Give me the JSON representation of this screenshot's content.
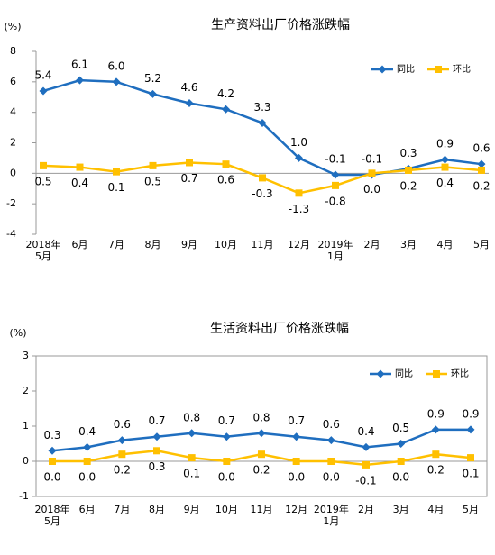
{
  "chart_data": [
    {
      "type": "line",
      "title": "生产资料出厂价格涨跌幅",
      "y_label": "(%)",
      "categories": [
        "2018年\n5月",
        "6月",
        "7月",
        "8月",
        "9月",
        "10月",
        "11月",
        "12月",
        "2019年\n1月",
        "2月",
        "3月",
        "4月",
        "5月"
      ],
      "series": [
        {
          "name": "同比",
          "color": "#1f6ebf",
          "marker": "diamond",
          "label_side": "above",
          "values": [
            5.4,
            6.1,
            6.0,
            5.2,
            4.6,
            4.2,
            3.3,
            1.0,
            -0.1,
            -0.1,
            0.3,
            0.9,
            0.6
          ],
          "value_labels": [
            "5.4",
            "6.1",
            "6.0",
            "5.2",
            "4.6",
            "4.2",
            "3.3",
            "1.0",
            "-0.1",
            "-0.1",
            "0.3",
            "0.9",
            "0.6"
          ]
        },
        {
          "name": "环比",
          "color": "#ffc000",
          "marker": "square",
          "label_side": "below",
          "values": [
            0.5,
            0.4,
            0.1,
            0.5,
            0.7,
            0.6,
            -0.3,
            -1.3,
            -0.8,
            0.0,
            0.2,
            0.4,
            0.2
          ],
          "value_labels": [
            "0.5",
            "0.4",
            "0.1",
            "0.5",
            "0.7",
            "0.6",
            "-0.3",
            "-1.3",
            "-0.8",
            "0.0",
            "0.2",
            "0.4",
            "0.2"
          ]
        }
      ],
      "ylim": [
        -4,
        8
      ],
      "yticks": [
        -4,
        -2,
        0,
        2,
        4,
        6,
        8
      ],
      "legend": "upper right",
      "frame": false
    },
    {
      "type": "line",
      "title": "生活资料出厂价格涨跌幅",
      "y_label": "(%)",
      "categories": [
        "2018年\n5月",
        "6月",
        "7月",
        "8月",
        "9月",
        "10月",
        "11月",
        "12月",
        "2019年\n1月",
        "2月",
        "3月",
        "4月",
        "5月"
      ],
      "series": [
        {
          "name": "同比",
          "color": "#1f6ebf",
          "marker": "diamond",
          "label_side": "above",
          "values": [
            0.3,
            0.4,
            0.6,
            0.7,
            0.8,
            0.7,
            0.8,
            0.7,
            0.6,
            0.4,
            0.5,
            0.9,
            0.9
          ],
          "value_labels": [
            "0.3",
            "0.4",
            "0.6",
            "0.7",
            "0.8",
            "0.7",
            "0.8",
            "0.7",
            "0.6",
            "0.4",
            "0.5",
            "0.9",
            "0.9"
          ]
        },
        {
          "name": "环比",
          "color": "#ffc000",
          "marker": "square",
          "label_side": "below",
          "values": [
            0.0,
            0.0,
            0.2,
            0.3,
            0.1,
            0.0,
            0.2,
            0.0,
            0.0,
            -0.1,
            0.0,
            0.2,
            0.1
          ],
          "value_labels": [
            "0.0",
            "0.0",
            "0.2",
            "0.3",
            "0.1",
            "0.0",
            "0.2",
            "0.0",
            "0.0",
            "-0.1",
            "0.0",
            "0.2",
            "0.1"
          ]
        }
      ],
      "ylim": [
        -1,
        3
      ],
      "yticks": [
        -1,
        0,
        1,
        2,
        3
      ],
      "legend": "upper right",
      "frame": true
    }
  ]
}
